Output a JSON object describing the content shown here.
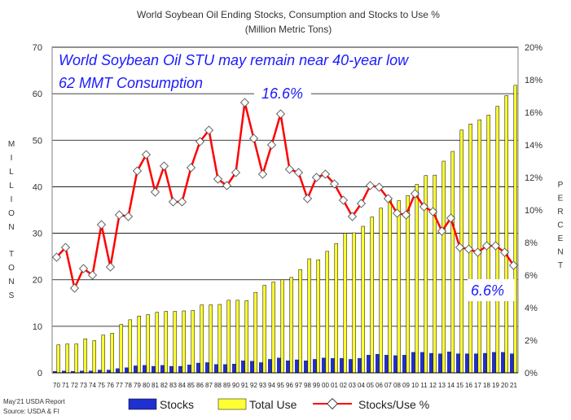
{
  "chart_data": {
    "type": "bar",
    "title": "World Soybean Oil Ending Stocks, Consumption and Stocks to Use %",
    "subtitle": "(Million Metric Tons)",
    "ylabel_left": "MILLION TONS",
    "ylabel_right": "PERCENT",
    "ylim_left": [
      0,
      70
    ],
    "ylim_right": [
      0,
      20
    ],
    "yticks_left": [
      "0",
      "10",
      "20",
      "30",
      "40",
      "50",
      "60",
      "70"
    ],
    "yticks_right": [
      "0%",
      "2%",
      "4%",
      "6%",
      "8%",
      "10%",
      "12%",
      "14%",
      "16%",
      "18%",
      "20%"
    ],
    "grid": true,
    "legend_position": "bottom",
    "categories": [
      "70",
      "71",
      "72",
      "73",
      "74",
      "75",
      "76",
      "77",
      "78",
      "79",
      "80",
      "81",
      "82",
      "83",
      "84",
      "85",
      "86",
      "87",
      "88",
      "89",
      "90",
      "91",
      "92",
      "93",
      "94",
      "95",
      "96",
      "97",
      "98",
      "99",
      "00",
      "01",
      "02",
      "03",
      "04",
      "05",
      "06",
      "07",
      "08",
      "09",
      "10",
      "11",
      "12",
      "13",
      "14",
      "15",
      "16",
      "17",
      "18",
      "19",
      "20",
      "21"
    ],
    "series": [
      {
        "name": "Stocks",
        "axis": "left",
        "color": "#1f2fd0",
        "values": [
          0.3,
          0.4,
          0.3,
          0.4,
          0.4,
          0.6,
          0.6,
          0.9,
          1.1,
          1.5,
          1.6,
          1.4,
          1.6,
          1.4,
          1.4,
          1.7,
          2.1,
          2.2,
          1.8,
          1.8,
          1.9,
          2.6,
          2.5,
          2.2,
          2.9,
          3.2,
          2.6,
          2.8,
          2.6,
          2.9,
          3.2,
          3.1,
          3.1,
          2.9,
          3.1,
          3.8,
          4.0,
          3.8,
          3.7,
          3.8,
          4.4,
          4.4,
          4.2,
          4.1,
          4.5,
          4.1,
          4.1,
          4.1,
          4.2,
          4.4,
          4.4,
          4.1
        ]
      },
      {
        "name": "Total Use",
        "axis": "left",
        "color": "#ffff33",
        "values": [
          6.0,
          6.2,
          6.2,
          7.3,
          6.9,
          8.1,
          8.5,
          10.4,
          11.4,
          12.2,
          12.5,
          13.0,
          13.2,
          13.2,
          13.3,
          13.4,
          14.6,
          14.6,
          14.7,
          15.6,
          15.6,
          15.5,
          17.3,
          18.8,
          19.5,
          20.0,
          20.5,
          22.2,
          24.5,
          24.3,
          26.1,
          27.8,
          30.0,
          30.1,
          31.5,
          33.5,
          35.4,
          37.2,
          37.0,
          38.1,
          40.5,
          42.4,
          42.5,
          45.5,
          47.6,
          52.2,
          53.5,
          54.4,
          55.4,
          57.3,
          59.6,
          61.8
        ]
      },
      {
        "name": "Stocks/Use %",
        "axis": "right",
        "type": "line",
        "color": "#ff0000",
        "values": [
          7.1,
          7.7,
          5.2,
          6.4,
          6.0,
          9.1,
          6.5,
          9.7,
          9.6,
          12.4,
          13.4,
          11.1,
          12.7,
          10.5,
          10.5,
          12.6,
          14.2,
          14.9,
          11.9,
          11.5,
          12.3,
          16.6,
          14.4,
          12.2,
          14.0,
          15.9,
          12.5,
          12.3,
          10.7,
          12.0,
          12.2,
          11.6,
          10.6,
          9.6,
          10.4,
          11.5,
          11.4,
          10.7,
          9.8,
          9.7,
          11.0,
          10.2,
          9.9,
          8.7,
          9.5,
          7.7,
          7.6,
          7.4,
          7.8,
          7.8,
          7.4,
          6.6
        ]
      }
    ],
    "annotations": [
      "World Soybean Oil STU may remain near 40-year low",
      "62 MMT Consumption",
      "16.6%",
      "6.6%"
    ]
  },
  "footer": {
    "line1": "May'21 USDA Report",
    "line2": "Source: USDA & FI"
  }
}
